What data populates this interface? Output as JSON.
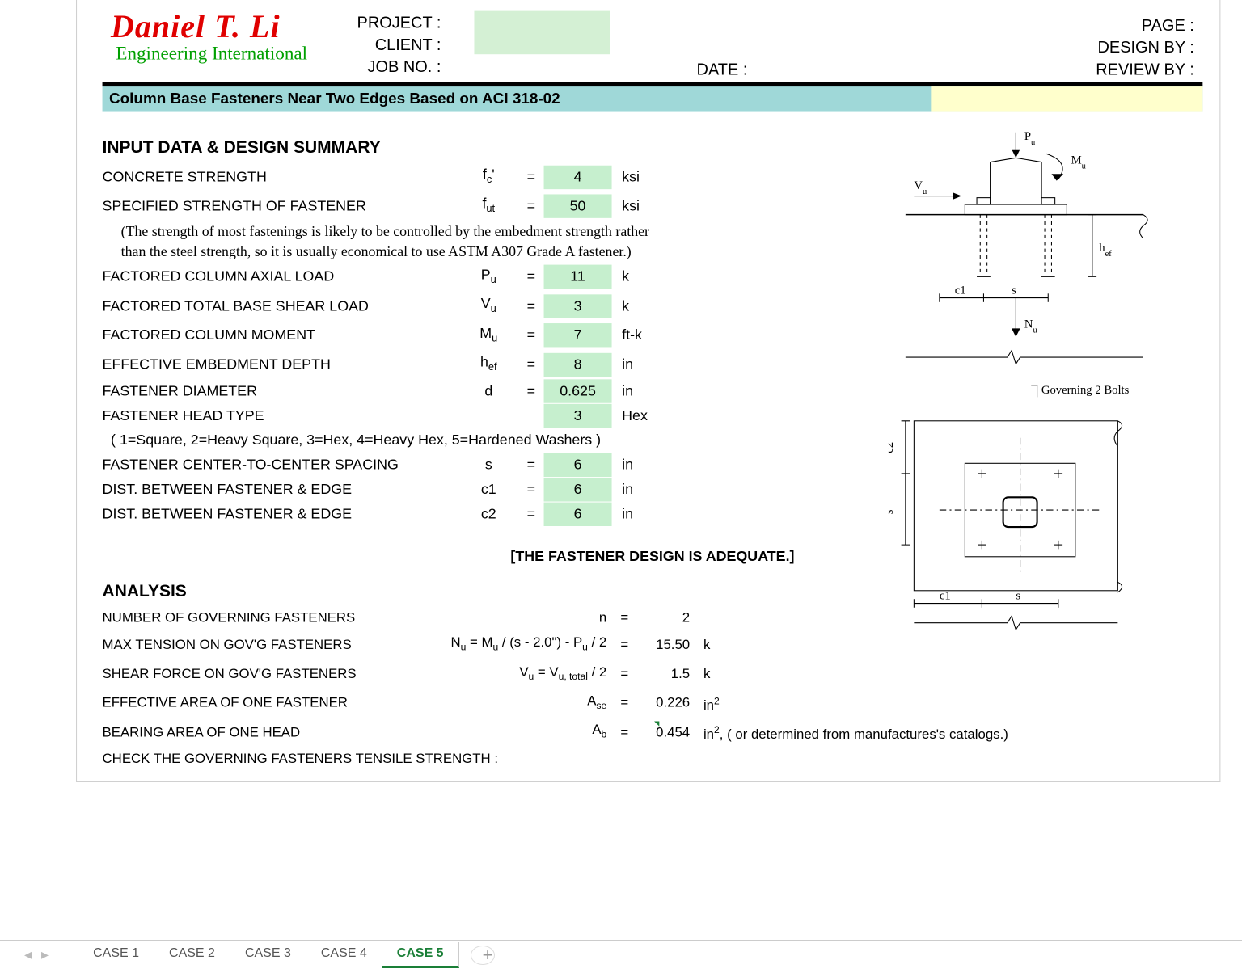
{
  "header": {
    "logo_name": "Daniel T. Li",
    "logo_sub": "Engineering International",
    "labels": {
      "project": "PROJECT :",
      "client": "CLIENT :",
      "jobno": "JOB NO. :",
      "date": "DATE :",
      "page": "PAGE :",
      "designby": "DESIGN BY :",
      "reviewby": "REVIEW BY :"
    }
  },
  "title": "Column Base Fasteners Near Two Edges Based on ACI 318-02",
  "sections": {
    "input_heading": "INPUT DATA & DESIGN SUMMARY",
    "analysis_heading": "ANALYSIS"
  },
  "inputs": {
    "fc": {
      "label": "CONCRETE STRENGTH",
      "symbol_html": "f<sub>c</sub>'",
      "value": "4",
      "unit": "ksi"
    },
    "fut": {
      "label": "SPECIFIED STRENGTH OF FASTENER",
      "symbol_html": "f<sub>ut</sub>",
      "value": "50",
      "unit": "ksi"
    },
    "note1": "(The strength of most fastenings is likely to be controlled by the embedment strength rather",
    "note2": "than the steel strength, so it is usually economical to use ASTM A307 Grade A fastener.)",
    "pu": {
      "label": "FACTORED COLUMN AXIAL LOAD",
      "symbol_html": "P<sub>u</sub>",
      "value": "11",
      "unit": "k"
    },
    "vu": {
      "label": "FACTORED TOTAL BASE SHEAR LOAD",
      "symbol_html": "V<sub>u</sub>",
      "value": "3",
      "unit": "k"
    },
    "mu": {
      "label": "FACTORED COLUMN MOMENT",
      "symbol_html": "M<sub>u</sub>",
      "value": "7",
      "unit": "ft-k"
    },
    "hef": {
      "label": "EFFECTIVE EMBEDMENT DEPTH",
      "symbol_html": "h<sub>ef</sub>",
      "value": "8",
      "unit": "in"
    },
    "d": {
      "label": "FASTENER DIAMETER",
      "symbol_html": "d",
      "value": "0.625",
      "unit": "in"
    },
    "head": {
      "label": "FASTENER HEAD TYPE",
      "symbol_html": "",
      "value": "3",
      "unit": "Hex"
    },
    "head_note": "( 1=Square, 2=Heavy Square, 3=Hex, 4=Heavy Hex, 5=Hardened Washers )",
    "s": {
      "label": "FASTENER CENTER-TO-CENTER SPACING",
      "symbol_html": "s",
      "value": "6",
      "unit": "in"
    },
    "c1": {
      "label": "DIST. BETWEEN FASTENER & EDGE",
      "symbol_html": "c1",
      "value": "6",
      "unit": "in"
    },
    "c2": {
      "label": "DIST. BETWEEN FASTENER & EDGE",
      "symbol_html": "c2",
      "value": "6",
      "unit": "in"
    }
  },
  "result_msg": "[THE FASTENER DESIGN IS ADEQUATE.]",
  "analysis": {
    "n": {
      "label": "NUMBER OF GOVERNING FASTENERS",
      "formula_html": "n",
      "value": "2",
      "unit": ""
    },
    "nu": {
      "label": "MAX TENSION ON GOV'G FASTENERS",
      "formula_html": "N<sub>u</sub> = M<sub>u</sub> / (s - 2.0\") - P<sub>u</sub> / 2",
      "value": "15.50",
      "unit": "k"
    },
    "vu": {
      "label": "SHEAR FORCE ON GOV'G FASTENERS",
      "formula_html": "V<sub>u</sub> = V<sub>u, total</sub> / 2",
      "value": "1.5",
      "unit": "k"
    },
    "ase": {
      "label": "EFFECTIVE AREA OF ONE FASTENER",
      "formula_html": "A<sub>se</sub>",
      "value": "0.226",
      "unit_html": "in<sup>2</sup>"
    },
    "ab": {
      "label": "BEARING AREA OF ONE HEAD",
      "formula_html": "A<sub>b</sub>",
      "value": "0.454",
      "unit_html": "in<sup>2</sup>, ( or determined from manufactures's catalogs.)"
    },
    "check": "CHECK THE GOVERNING FASTENERS TENSILE STRENGTH :"
  },
  "diagram_labels": {
    "pu": "P",
    "mu": "M",
    "vu": "V",
    "nu": "N",
    "hef": "h",
    "c1": "c1",
    "s": "s",
    "c2": "c2",
    "gov": "Governing 2 Bolts"
  },
  "tabs": [
    "CASE 1",
    "CASE 2",
    "CASE 3",
    "CASE 4",
    "CASE 5"
  ],
  "active_tab_index": 4,
  "colors": {
    "input_fill": "#c6efce",
    "title_bg": "#9fd8d8",
    "title_right_bg": "#ffffcc",
    "header_green": "#d4f0d4",
    "logo_red": "#e00000",
    "logo_green": "#00a000"
  }
}
